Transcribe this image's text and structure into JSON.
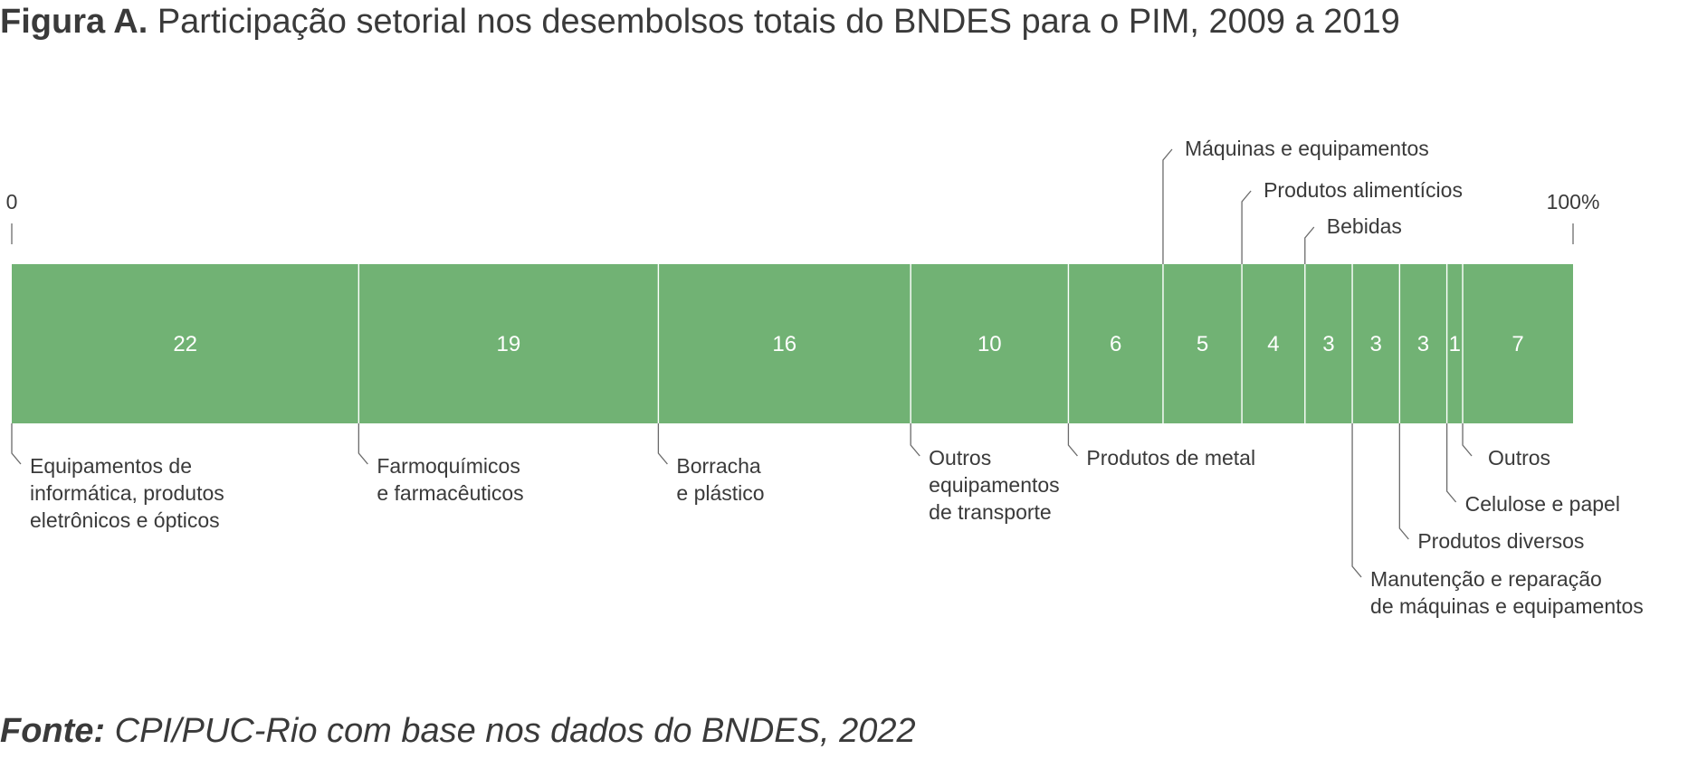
{
  "title": {
    "label": "Figura A.",
    "text": "Participação setorial nos desembolsos totais do BNDES para o PIM, 2009 a 2019"
  },
  "source": {
    "label": "Fonte:",
    "text": "CPI/PUC-Rio com base nos dados do BNDES, 2022"
  },
  "colors": {
    "bar": "#71b274",
    "divider": "#ffffff",
    "leader": "#6b6b6b",
    "text": "#3a3a3a"
  },
  "chart_data": {
    "type": "bar",
    "subtype": "100%-stacked-horizontal",
    "axis": {
      "min_label": "0",
      "max_label": "100%",
      "range": [
        0,
        100
      ]
    },
    "segments": [
      {
        "name": "Equipamentos de informática, produtos eletrônicos e ópticos",
        "value": 22,
        "lines": [
          "Equipamentos de",
          "informática, produtos",
          "eletrônicos e ópticos"
        ],
        "side": "below"
      },
      {
        "name": "Farmoquímicos e farmacêuticos",
        "value": 19,
        "lines": [
          "Farmoquímicos",
          "e farmacêuticos"
        ],
        "side": "below"
      },
      {
        "name": "Borracha e plástico",
        "value": 16,
        "lines": [
          "Borracha",
          "e plástico"
        ],
        "side": "below"
      },
      {
        "name": "Outros equipamentos de transporte",
        "value": 10,
        "lines": [
          "Outros",
          "equipamentos",
          "de transporte"
        ],
        "side": "below"
      },
      {
        "name": "Produtos de metal",
        "value": 6,
        "lines": [
          "Produtos de metal"
        ],
        "side": "below"
      },
      {
        "name": "Máquinas e equipamentos",
        "value": 5,
        "lines": [
          "Máquinas e equipamentos"
        ],
        "side": "above"
      },
      {
        "name": "Produtos alimentícios",
        "value": 4,
        "lines": [
          "Produtos alimentícios"
        ],
        "side": "above"
      },
      {
        "name": "Bebidas",
        "value": 3,
        "lines": [
          "Bebidas"
        ],
        "side": "above"
      },
      {
        "name": "Manutenção e reparação de máquinas e equipamentos",
        "value": 3,
        "lines": [
          "Manutenção e reparação",
          "de máquinas e equipamentos"
        ],
        "side": "below"
      },
      {
        "name": "Produtos diversos",
        "value": 3,
        "lines": [
          "Produtos diversos"
        ],
        "side": "below"
      },
      {
        "name": "Celulose e papel",
        "value": 1,
        "lines": [
          "Celulose e papel"
        ],
        "side": "below"
      },
      {
        "name": "Outros",
        "value": 7,
        "lines": [
          "Outros"
        ],
        "side": "below"
      }
    ]
  }
}
